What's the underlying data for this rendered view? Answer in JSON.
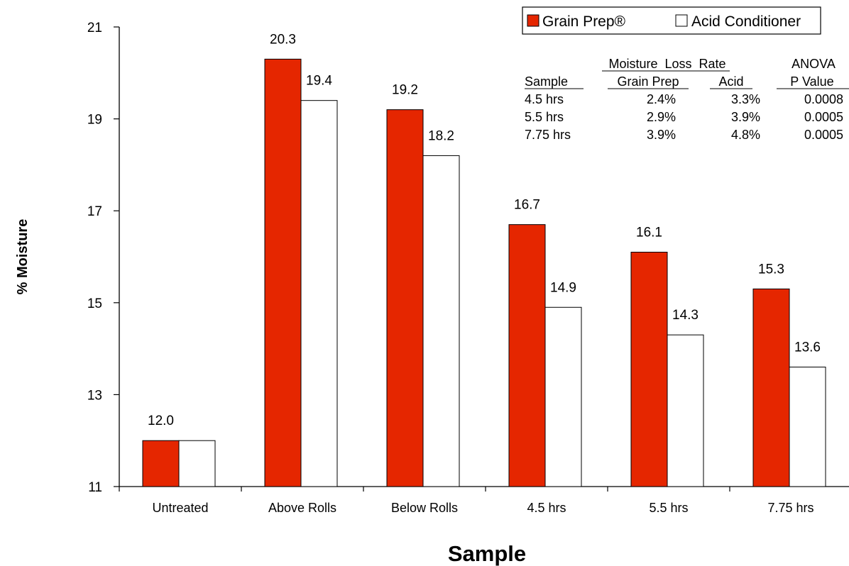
{
  "chart_data": {
    "type": "bar",
    "xlabel": "Sample",
    "ylabel": "% Moisture",
    "ylim": [
      11,
      21
    ],
    "yticks": [
      "11",
      "13",
      "15",
      "17",
      "19",
      "21"
    ],
    "categories": [
      "Untreated",
      "Above Rolls",
      "Below Rolls",
      "4.5 hrs",
      "5.5 hrs",
      "7.75 hrs"
    ],
    "series": [
      {
        "name": "Grain Prep®",
        "color": "#e52600",
        "values": [
          12.0,
          20.3,
          19.2,
          16.7,
          16.1,
          15.3
        ],
        "labels": [
          "12.0",
          "20.3",
          "19.2",
          "16.7",
          "16.1",
          "15.3"
        ]
      },
      {
        "name": "Acid Conditioner",
        "color": "#ffffff",
        "values": [
          12.0,
          19.4,
          18.2,
          14.9,
          14.3,
          13.6
        ],
        "labels": [
          "",
          "19.4",
          "18.2",
          "14.9",
          "14.3",
          "13.6"
        ]
      }
    ],
    "legend_position": "top-right",
    "grid": false,
    "annotation_table": {
      "group_header": "Moisture  Loss  Rate",
      "anova_header": "ANOVA",
      "headers": [
        "Sample",
        "Grain Prep",
        "Acid",
        "P Value"
      ],
      "rows": [
        [
          "4.5 hrs",
          "2.4%",
          "3.3%",
          "0.0008"
        ],
        [
          "5.5 hrs",
          "2.9%",
          "3.9%",
          "0.0005"
        ],
        [
          "7.75 hrs",
          "3.9%",
          "4.8%",
          "0.0005"
        ]
      ]
    }
  }
}
